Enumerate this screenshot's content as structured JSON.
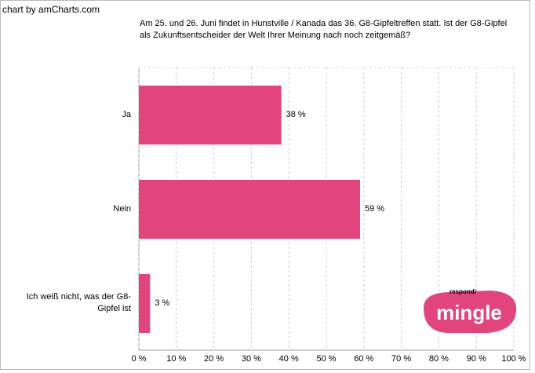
{
  "chart_data": {
    "type": "hbar",
    "credit": "chart by amCharts.com",
    "title": "Am 25.  und 26. Juni findet in Hunstville / Kanada das 36. G8-Gipfeltreffen statt. Ist der G8-Gipfel als Zukunftsentscheider der Welt Ihrer Meinung nach noch zeitgemäß?",
    "categories": [
      "Ja",
      "Nein",
      "Ich weiß nicht, was der G8-Gipfel ist"
    ],
    "values": [
      38,
      59,
      3
    ],
    "value_labels": [
      "38 %",
      "59 %",
      "3 %"
    ],
    "color": "#e2457e",
    "xlim": [
      0,
      100
    ],
    "xticks": [
      {
        "value": 0,
        "label": "0 %"
      },
      {
        "value": 10,
        "label": "10 %"
      },
      {
        "value": 20,
        "label": "20 %"
      },
      {
        "value": 30,
        "label": "30 %"
      },
      {
        "value": 40,
        "label": "40 %"
      },
      {
        "value": 50,
        "label": "50 %"
      },
      {
        "value": 60,
        "label": "60 %"
      },
      {
        "value": 70,
        "label": "70 %"
      },
      {
        "value": 80,
        "label": "80 %"
      },
      {
        "value": 90,
        "label": "90 %"
      },
      {
        "value": 100,
        "label": "100 %"
      }
    ],
    "grid": true,
    "logo": {
      "top": "respondi",
      "main": "mingle"
    }
  }
}
